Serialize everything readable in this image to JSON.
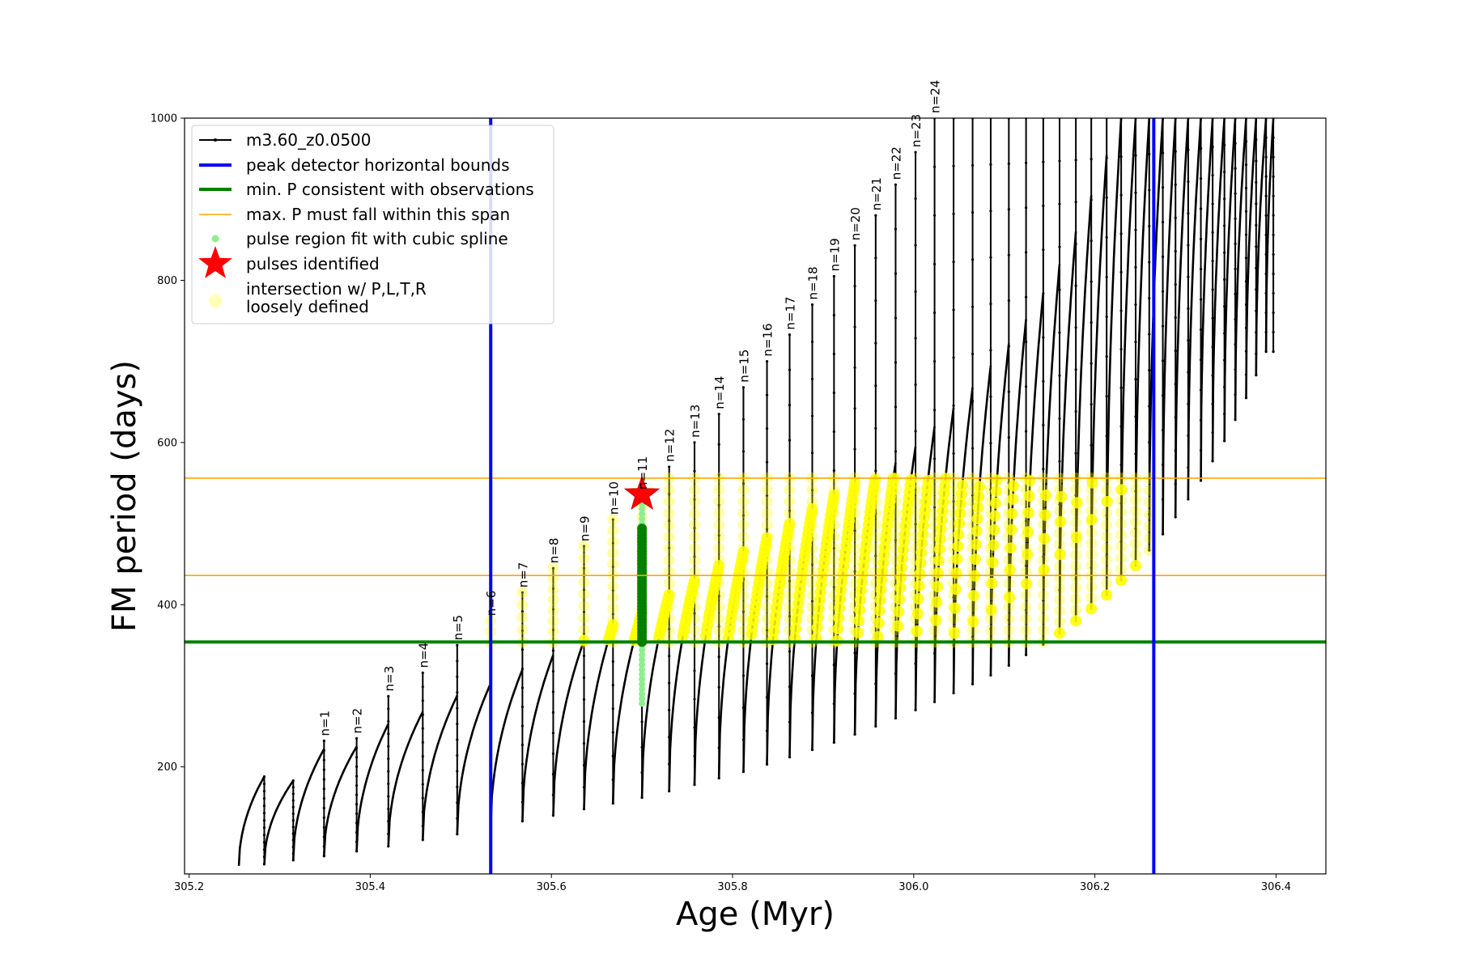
{
  "chart_data": {
    "type": "line",
    "xlabel": "Age (Myr)",
    "ylabel": "FM period (days)",
    "xlim": [
      305.195,
      306.455
    ],
    "ylim": [
      68,
      1000
    ],
    "x_ticks": [
      "305.2",
      "305.4",
      "305.6",
      "305.8",
      "306.0",
      "306.2",
      "306.4"
    ],
    "x_tick_values": [
      305.2,
      305.4,
      305.6,
      305.8,
      306.0,
      306.2,
      306.4
    ],
    "y_ticks": [
      "200",
      "400",
      "600",
      "800",
      "1000"
    ],
    "y_tick_values": [
      200,
      400,
      600,
      800,
      1000
    ],
    "grid": false,
    "legend_position": "top-left",
    "colors": {
      "model": "#000000",
      "peak_bounds": "#0000ff",
      "min_period": "#008000",
      "max_period_span": "#ffa500",
      "spline_fit": "#90ee90",
      "pulse_identified": "#ff0000",
      "intersection": "#ffff00"
    },
    "legend": [
      {
        "label": "m3.60_z0.0500",
        "style": "line-marker",
        "color": "#000000"
      },
      {
        "label": "peak detector horizontal bounds",
        "style": "thick-line",
        "color": "#0000ff"
      },
      {
        "label": "min. P consistent with observations",
        "style": "thick-line",
        "color": "#008000"
      },
      {
        "label": "max. P must fall within this span",
        "style": "thin-line",
        "color": "#ffa500"
      },
      {
        "label": "pulse region fit with cubic spline",
        "style": "dot",
        "color": "#90ee90"
      },
      {
        "label": "pulses identified",
        "style": "star",
        "color": "#ff0000"
      },
      {
        "label": "intersection w/ P,L,T,R",
        "label2": "loosely defined",
        "style": "circle",
        "color": "#ffffa0"
      }
    ],
    "peak_detector_bounds_x": [
      305.533,
      306.265
    ],
    "min_period_y": 354,
    "max_period_span_y": [
      436,
      556
    ],
    "identified_pulse": {
      "x": 305.7,
      "y": 536,
      "label": "n=11"
    },
    "spline_fit_region": {
      "x": 305.7,
      "y_range": [
        278,
        525
      ]
    },
    "min_period_fit_segment": {
      "x": 305.7,
      "y_range": [
        354,
        495
      ]
    },
    "series": [
      {
        "name": "m3.60_z0.0500",
        "pulses": [
          {
            "x_start": 305.255,
            "x_end": 305.283,
            "y_min": 78,
            "y_peak": 188,
            "y_spike": null,
            "label": ""
          },
          {
            "x_start": 305.283,
            "x_end": 305.315,
            "y_min": 80,
            "y_peak": 183,
            "y_spike": null,
            "label": ""
          },
          {
            "x_start": 305.315,
            "x_end": 305.349,
            "y_min": 85,
            "y_peak": 222,
            "y_spike": 232,
            "label": "n=1"
          },
          {
            "x_start": 305.349,
            "x_end": 305.385,
            "y_min": 90,
            "y_peak": 225,
            "y_spike": 235,
            "label": "n=2"
          },
          {
            "x_start": 305.385,
            "x_end": 305.42,
            "y_min": 96,
            "y_peak": 253,
            "y_spike": 287,
            "label": "n=3"
          },
          {
            "x_start": 305.42,
            "x_end": 305.458,
            "y_min": 102,
            "y_peak": 268,
            "y_spike": 316,
            "label": "n=4"
          },
          {
            "x_start": 305.458,
            "x_end": 305.496,
            "y_min": 110,
            "y_peak": 288,
            "y_spike": 350,
            "label": "n=5"
          },
          {
            "x_start": 305.496,
            "x_end": 305.533,
            "y_min": 117,
            "y_peak": 303,
            "y_spike": 380,
            "label": "n=6"
          },
          {
            "x_start": 305.533,
            "x_end": 305.568,
            "y_min": 126,
            "y_peak": 320,
            "y_spike": 415,
            "label": "n=7"
          },
          {
            "x_start": 305.568,
            "x_end": 305.602,
            "y_min": 133,
            "y_peak": 338,
            "y_spike": 445,
            "label": "n=8"
          },
          {
            "x_start": 305.602,
            "x_end": 305.636,
            "y_min": 140,
            "y_peak": 356,
            "y_spike": 472,
            "label": "n=9"
          },
          {
            "x_start": 305.636,
            "x_end": 305.668,
            "y_min": 148,
            "y_peak": 375,
            "y_spike": 505,
            "label": "n=10"
          },
          {
            "x_start": 305.668,
            "x_end": 305.7,
            "y_min": 155,
            "y_peak": 390,
            "y_spike": 536,
            "label": "n=11"
          },
          {
            "x_start": 305.7,
            "x_end": 305.73,
            "y_min": 162,
            "y_peak": 412,
            "y_spike": 570,
            "label": "n=12"
          },
          {
            "x_start": 305.73,
            "x_end": 305.758,
            "y_min": 170,
            "y_peak": 430,
            "y_spike": 600,
            "label": "n=13"
          },
          {
            "x_start": 305.758,
            "x_end": 305.785,
            "y_min": 178,
            "y_peak": 448,
            "y_spike": 635,
            "label": "n=14"
          },
          {
            "x_start": 305.785,
            "x_end": 305.812,
            "y_min": 186,
            "y_peak": 465,
            "y_spike": 668,
            "label": "n=15"
          },
          {
            "x_start": 305.812,
            "x_end": 305.838,
            "y_min": 194,
            "y_peak": 482,
            "y_spike": 700,
            "label": "n=16"
          },
          {
            "x_start": 305.838,
            "x_end": 305.863,
            "y_min": 203,
            "y_peak": 500,
            "y_spike": 733,
            "label": "n=17"
          },
          {
            "x_start": 305.863,
            "x_end": 305.888,
            "y_min": 212,
            "y_peak": 518,
            "y_spike": 770,
            "label": "n=18"
          },
          {
            "x_start": 305.888,
            "x_end": 305.912,
            "y_min": 221,
            "y_peak": 535,
            "y_spike": 805,
            "label": "n=19"
          },
          {
            "x_start": 305.912,
            "x_end": 305.935,
            "y_min": 230,
            "y_peak": 550,
            "y_spike": 843,
            "label": "n=20"
          },
          {
            "x_start": 305.935,
            "x_end": 305.958,
            "y_min": 240,
            "y_peak": 560,
            "y_spike": 880,
            "label": "n=21"
          },
          {
            "x_start": 305.958,
            "x_end": 305.98,
            "y_min": 250,
            "y_peak": 575,
            "y_spike": 918,
            "label": "n=22"
          },
          {
            "x_start": 305.98,
            "x_end": 306.002,
            "y_min": 260,
            "y_peak": 595,
            "y_spike": 958,
            "label": "n=23"
          },
          {
            "x_start": 306.002,
            "x_end": 306.023,
            "y_min": 270,
            "y_peak": 620,
            "y_spike": 1000,
            "label": "n=24"
          },
          {
            "x_start": 306.023,
            "x_end": 306.044,
            "y_min": 280,
            "y_peak": 643,
            "y_spike": 1000,
            "label": ""
          },
          {
            "x_start": 306.044,
            "x_end": 306.065,
            "y_min": 291,
            "y_peak": 668,
            "y_spike": 1000,
            "label": ""
          },
          {
            "x_start": 306.065,
            "x_end": 306.085,
            "y_min": 302,
            "y_peak": 695,
            "y_spike": 1000,
            "label": ""
          },
          {
            "x_start": 306.085,
            "x_end": 306.105,
            "y_min": 313,
            "y_peak": 722,
            "y_spike": 1000,
            "label": ""
          },
          {
            "x_start": 306.105,
            "x_end": 306.124,
            "y_min": 325,
            "y_peak": 752,
            "y_spike": 1000,
            "label": ""
          },
          {
            "x_start": 306.124,
            "x_end": 306.143,
            "y_min": 338,
            "y_peak": 785,
            "y_spike": 1000,
            "label": ""
          },
          {
            "x_start": 306.143,
            "x_end": 306.161,
            "y_min": 351,
            "y_peak": 820,
            "y_spike": 1000,
            "label": ""
          },
          {
            "x_start": 306.161,
            "x_end": 306.179,
            "y_min": 365,
            "y_peak": 860,
            "y_spike": 1000,
            "label": ""
          },
          {
            "x_start": 306.179,
            "x_end": 306.196,
            "y_min": 380,
            "y_peak": 905,
            "y_spike": 1000,
            "label": ""
          },
          {
            "x_start": 306.196,
            "x_end": 306.213,
            "y_min": 395,
            "y_peak": 955,
            "y_spike": 1000,
            "label": ""
          },
          {
            "x_start": 306.213,
            "x_end": 306.229,
            "y_min": 412,
            "y_peak": 1000,
            "y_spike": 1000,
            "label": ""
          },
          {
            "x_start": 306.229,
            "x_end": 306.245,
            "y_min": 430,
            "y_peak": 1000,
            "y_spike": 1000,
            "label": ""
          },
          {
            "x_start": 306.245,
            "x_end": 306.26,
            "y_min": 448,
            "y_peak": 1000,
            "y_spike": 1000,
            "label": ""
          },
          {
            "x_start": 306.26,
            "x_end": 306.275,
            "y_min": 467,
            "y_peak": 1000,
            "y_spike": 1000,
            "label": ""
          },
          {
            "x_start": 306.275,
            "x_end": 306.289,
            "y_min": 487,
            "y_peak": 1000,
            "y_spike": 1000,
            "label": ""
          },
          {
            "x_start": 306.289,
            "x_end": 306.303,
            "y_min": 508,
            "y_peak": 1000,
            "y_spike": 1000,
            "label": ""
          },
          {
            "x_start": 306.303,
            "x_end": 306.317,
            "y_min": 530,
            "y_peak": 1000,
            "y_spike": 1000,
            "label": ""
          },
          {
            "x_start": 306.317,
            "x_end": 306.33,
            "y_min": 553,
            "y_peak": 1000,
            "y_spike": 1000,
            "label": ""
          },
          {
            "x_start": 306.33,
            "x_end": 306.343,
            "y_min": 577,
            "y_peak": 1000,
            "y_spike": 1000,
            "label": ""
          },
          {
            "x_start": 306.343,
            "x_end": 306.355,
            "y_min": 602,
            "y_peak": 1000,
            "y_spike": 1000,
            "label": ""
          },
          {
            "x_start": 306.355,
            "x_end": 306.367,
            "y_min": 628,
            "y_peak": 1000,
            "y_spike": 1000,
            "label": ""
          },
          {
            "x_start": 306.367,
            "x_end": 306.378,
            "y_min": 655,
            "y_peak": 1000,
            "y_spike": 1000,
            "label": ""
          },
          {
            "x_start": 306.378,
            "x_end": 306.389,
            "y_min": 683,
            "y_peak": 1000,
            "y_spike": 1000,
            "label": ""
          },
          {
            "x_start": 306.389,
            "x_end": 306.397,
            "y_min": 712,
            "y_peak": 1000,
            "y_spike": 985,
            "label": ""
          }
        ]
      }
    ]
  }
}
